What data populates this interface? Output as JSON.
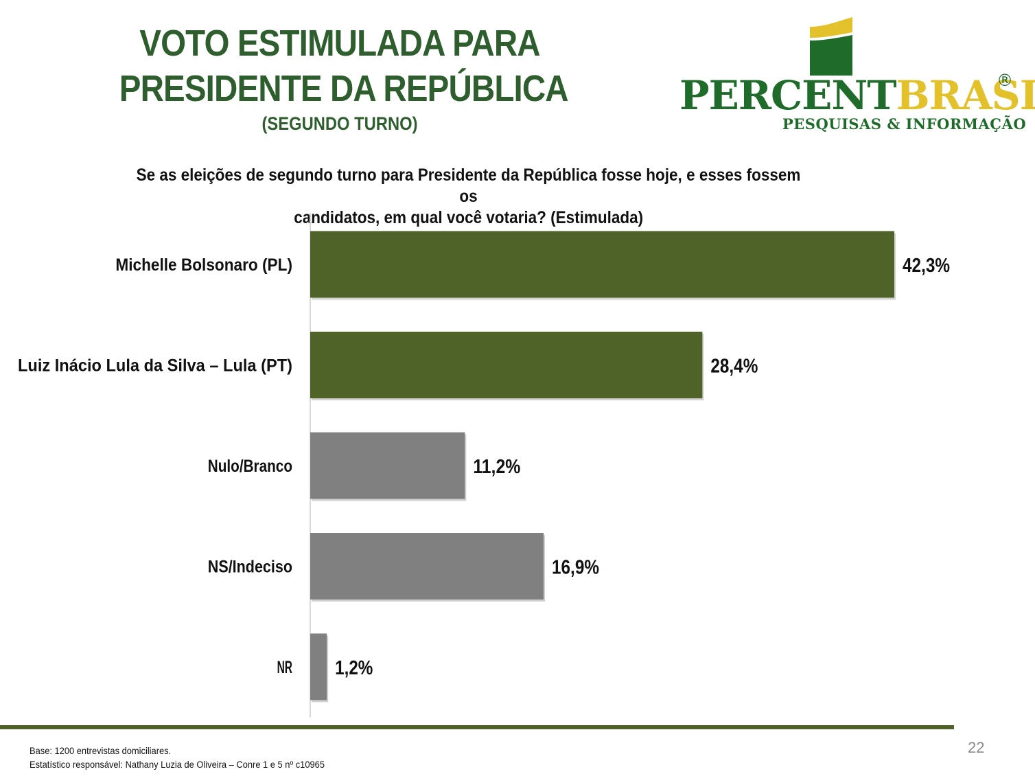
{
  "header": {
    "title_line1": "VOTO ESTIMULADA PARA",
    "title_line2": "PRESIDENTE DA REPÚBLICA",
    "subtitle": "(SEGUNDO TURNO)"
  },
  "logo": {
    "brand_part1": "PERCENT",
    "brand_part2": "BRASIL",
    "registered": "®",
    "tagline": "PESQUISAS & INFORMAÇÃO",
    "colors": {
      "green": "#1f6b2a",
      "yellow": "#e3c12a"
    }
  },
  "question": {
    "line1": "Se as eleições de segundo turno para Presidente da República fosse hoje, e esses fossem os",
    "line2": "candidatos, em qual você votaria? (Estimulada)"
  },
  "chart_data": {
    "type": "bar",
    "orientation": "horizontal",
    "categories": [
      "Michelle Bolsonaro (PL)",
      "Luiz Inácio Lula da Silva – Lula (PT)",
      "Nulo/Branco",
      "NS/Indeciso",
      "NR"
    ],
    "values": [
      42.3,
      28.4,
      11.2,
      16.9,
      1.2
    ],
    "value_labels": [
      "42,3%",
      "28,4%",
      "11,2%",
      "16,9%",
      "1,2%"
    ],
    "bar_colors": [
      "#4f6228",
      "#4f6228",
      "#808080",
      "#808080",
      "#808080"
    ],
    "xlim": [
      0,
      42.3
    ],
    "grid": false,
    "legend": "none"
  },
  "footer": {
    "base": "Base: 1200 entrevistas domiciliares.",
    "statistician": "Estatístico responsável: Nathany Luzia de Oliveira – Conre 1 e 5 nº c10965",
    "page_number": "22"
  }
}
